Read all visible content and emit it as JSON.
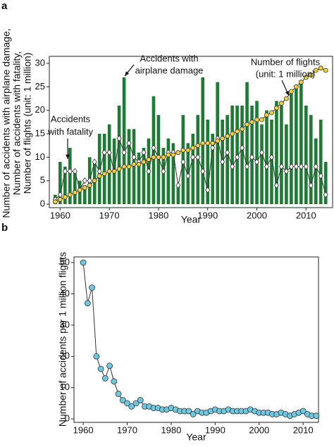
{
  "chart_data": [
    {
      "type": "bar",
      "panel": "a",
      "xlabel": "Year",
      "ylabel": [
        "Number of accidents with airplane damage,",
        "Number of accidents with fatality,",
        "Number of flights (unit: 1 million)"
      ],
      "annotations": [
        [
          "Accidents",
          "with fatality"
        ],
        [
          "Accidents with",
          "airplane damage"
        ],
        [
          "Number of flights",
          "(unit: 1 million)"
        ]
      ],
      "x": [
        1959,
        1960,
        1961,
        1962,
        1963,
        1964,
        1965,
        1966,
        1967,
        1968,
        1969,
        1970,
        1971,
        1972,
        1973,
        1974,
        1975,
        1976,
        1977,
        1978,
        1979,
        1980,
        1981,
        1982,
        1983,
        1984,
        1985,
        1986,
        1987,
        1988,
        1989,
        1990,
        1991,
        1992,
        1993,
        1994,
        1995,
        1996,
        1997,
        1998,
        1999,
        2000,
        2001,
        2002,
        2003,
        2004,
        2005,
        2006,
        2007,
        2008,
        2009,
        2010,
        2011,
        2012,
        2013,
        2014
      ],
      "series": [
        {
          "type": "bar",
          "color": "#1e7a34",
          "values": [
            2,
            9,
            8,
            12,
            7,
            5,
            4,
            10,
            9,
            15,
            15,
            17,
            14,
            21,
            27,
            16,
            16,
            11,
            12,
            14,
            23,
            19,
            12,
            14,
            13,
            4,
            19,
            13,
            15,
            19,
            27,
            18,
            15,
            26,
            18,
            19,
            21,
            21,
            21,
            26,
            21,
            22,
            17,
            20,
            18,
            22,
            21,
            17,
            24,
            25,
            26,
            21,
            19,
            14,
            18,
            9
          ]
        },
        {
          "type": "line",
          "marker": "diamond",
          "color": "#ffffff",
          "values": [
            1,
            2,
            7,
            7,
            7,
            3,
            5,
            5,
            9,
            7,
            11,
            11,
            7,
            14,
            11,
            13,
            10,
            9,
            11,
            7,
            12,
            10,
            7,
            11,
            11,
            4,
            9,
            6,
            10,
            10,
            7,
            3,
            12,
            14,
            9,
            11,
            8,
            10,
            12,
            8,
            10,
            9,
            11,
            8,
            10,
            4,
            8,
            7,
            8,
            8,
            8,
            8,
            4,
            8,
            6,
            2
          ]
        },
        {
          "type": "line",
          "marker": "circle",
          "color": "#f2d43a",
          "values": [
            0.5,
            1,
            1.5,
            2,
            2.5,
            3,
            3.5,
            4,
            5,
            6,
            6.5,
            7,
            7,
            7.5,
            8,
            8,
            8.5,
            8.5,
            9,
            9.5,
            10,
            10,
            10,
            10.5,
            10.5,
            11,
            11.5,
            11.5,
            12,
            12.5,
            13,
            13,
            13,
            13.5,
            14,
            14.5,
            15,
            15.5,
            16,
            17,
            17.5,
            18,
            18,
            19,
            19.5,
            20.5,
            21.5,
            22.5,
            24,
            25,
            26,
            27,
            27.5,
            28.5,
            29,
            28.5
          ]
        }
      ],
      "xlim": [
        1957.8,
        2015.4
      ],
      "xticks": [
        1960,
        1970,
        1980,
        1990,
        2000,
        2010
      ],
      "ylim": [
        -0.75,
        31.5
      ],
      "yticks": [
        0,
        5,
        10,
        15,
        20,
        25,
        30
      ]
    },
    {
      "type": "line",
      "panel": "b",
      "xlabel": "Year",
      "ylabel": [
        "Number of accidents per 1 million flights"
      ],
      "x": [
        1960,
        1961,
        1962,
        1963,
        1964,
        1965,
        1966,
        1967,
        1968,
        1969,
        1970,
        1971,
        1972,
        1973,
        1974,
        1975,
        1976,
        1977,
        1978,
        1979,
        1980,
        1981,
        1982,
        1983,
        1984,
        1985,
        1986,
        1987,
        1988,
        1989,
        1990,
        1991,
        1992,
        1993,
        1994,
        1995,
        1996,
        1997,
        1998,
        1999,
        2000,
        2001,
        2002,
        2003,
        2004,
        2005,
        2006,
        2007,
        2008,
        2009,
        2010,
        2011,
        2012,
        2013
      ],
      "series": [
        {
          "type": "line",
          "marker": "circle",
          "color": "#6ec8df",
          "values": [
            50,
            37,
            42,
            20,
            16,
            13,
            17,
            12,
            8,
            6,
            5,
            4,
            5,
            6,
            4,
            4,
            3.5,
            3.5,
            3,
            3,
            3.5,
            3,
            2.5,
            2.5,
            2.5,
            1.5,
            2.5,
            2,
            2,
            2.5,
            3,
            2.5,
            2.5,
            3,
            2.5,
            2.5,
            2.5,
            2.5,
            3,
            2.5,
            2,
            2,
            2,
            1.5,
            1.5,
            2,
            1.5,
            1,
            1.5,
            2,
            2.5,
            1.5,
            1,
            1
          ]
        }
      ],
      "xlim": [
        1957.9,
        2013.5
      ],
      "xticks": [
        1960,
        1970,
        1980,
        1990,
        2000,
        2010
      ],
      "ylim": [
        -1.1,
        51.8
      ],
      "yticks": [
        0,
        10,
        20,
        30,
        40,
        50
      ]
    }
  ]
}
